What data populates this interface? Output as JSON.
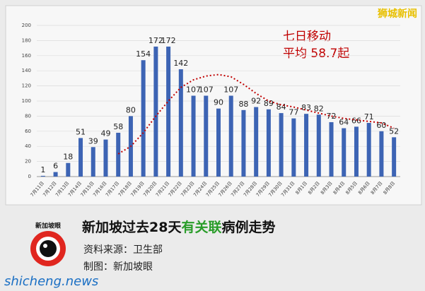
{
  "chart_data": {
    "type": "bar",
    "categories": [
      "7月11日",
      "7月12日",
      "7月13日",
      "7月14日",
      "7月15日",
      "7月16日",
      "7月17日",
      "7月18日",
      "7月19日",
      "7月20日",
      "7月21日",
      "7月22日",
      "7月23日",
      "7月24日",
      "7月25日",
      "7月26日",
      "7月27日",
      "7月28日",
      "7月29日",
      "7月30日",
      "7月31日",
      "8月1日",
      "8月2日",
      "8月3日",
      "8月4日",
      "8月5日",
      "8月6日",
      "8月7日",
      "8月8日"
    ],
    "values": [
      1,
      6,
      18,
      51,
      39,
      49,
      58,
      80,
      154,
      172,
      172,
      142,
      107,
      107,
      90,
      107,
      88,
      92,
      89,
      84,
      77,
      83,
      82,
      72,
      64,
      66,
      71,
      60,
      52
    ],
    "color": "#3d64b4",
    "moving_average": [
      null,
      null,
      null,
      null,
      null,
      null,
      30,
      40,
      58,
      80,
      100,
      118,
      128,
      133,
      135,
      132,
      122,
      110,
      100,
      95,
      92,
      88,
      84,
      80,
      77,
      75,
      73,
      71,
      64
    ],
    "moving_average_color": "#c00000",
    "annotations": [
      "七日移动",
      "平均 58.7起"
    ],
    "ylim": [
      0,
      200
    ],
    "yticks": [
      0,
      20,
      40,
      60,
      80,
      100,
      120,
      140,
      160,
      180,
      200
    ],
    "grid": true
  },
  "header": {
    "brand": "狮城新闻",
    "title_parts": [
      "新加坡过去28天",
      "有关联",
      "病例走势"
    ],
    "source": "资料来源：卫生部",
    "maker": "制图：新加坡眼",
    "logo": "新加坡眼",
    "watermark": "shicheng.news"
  }
}
